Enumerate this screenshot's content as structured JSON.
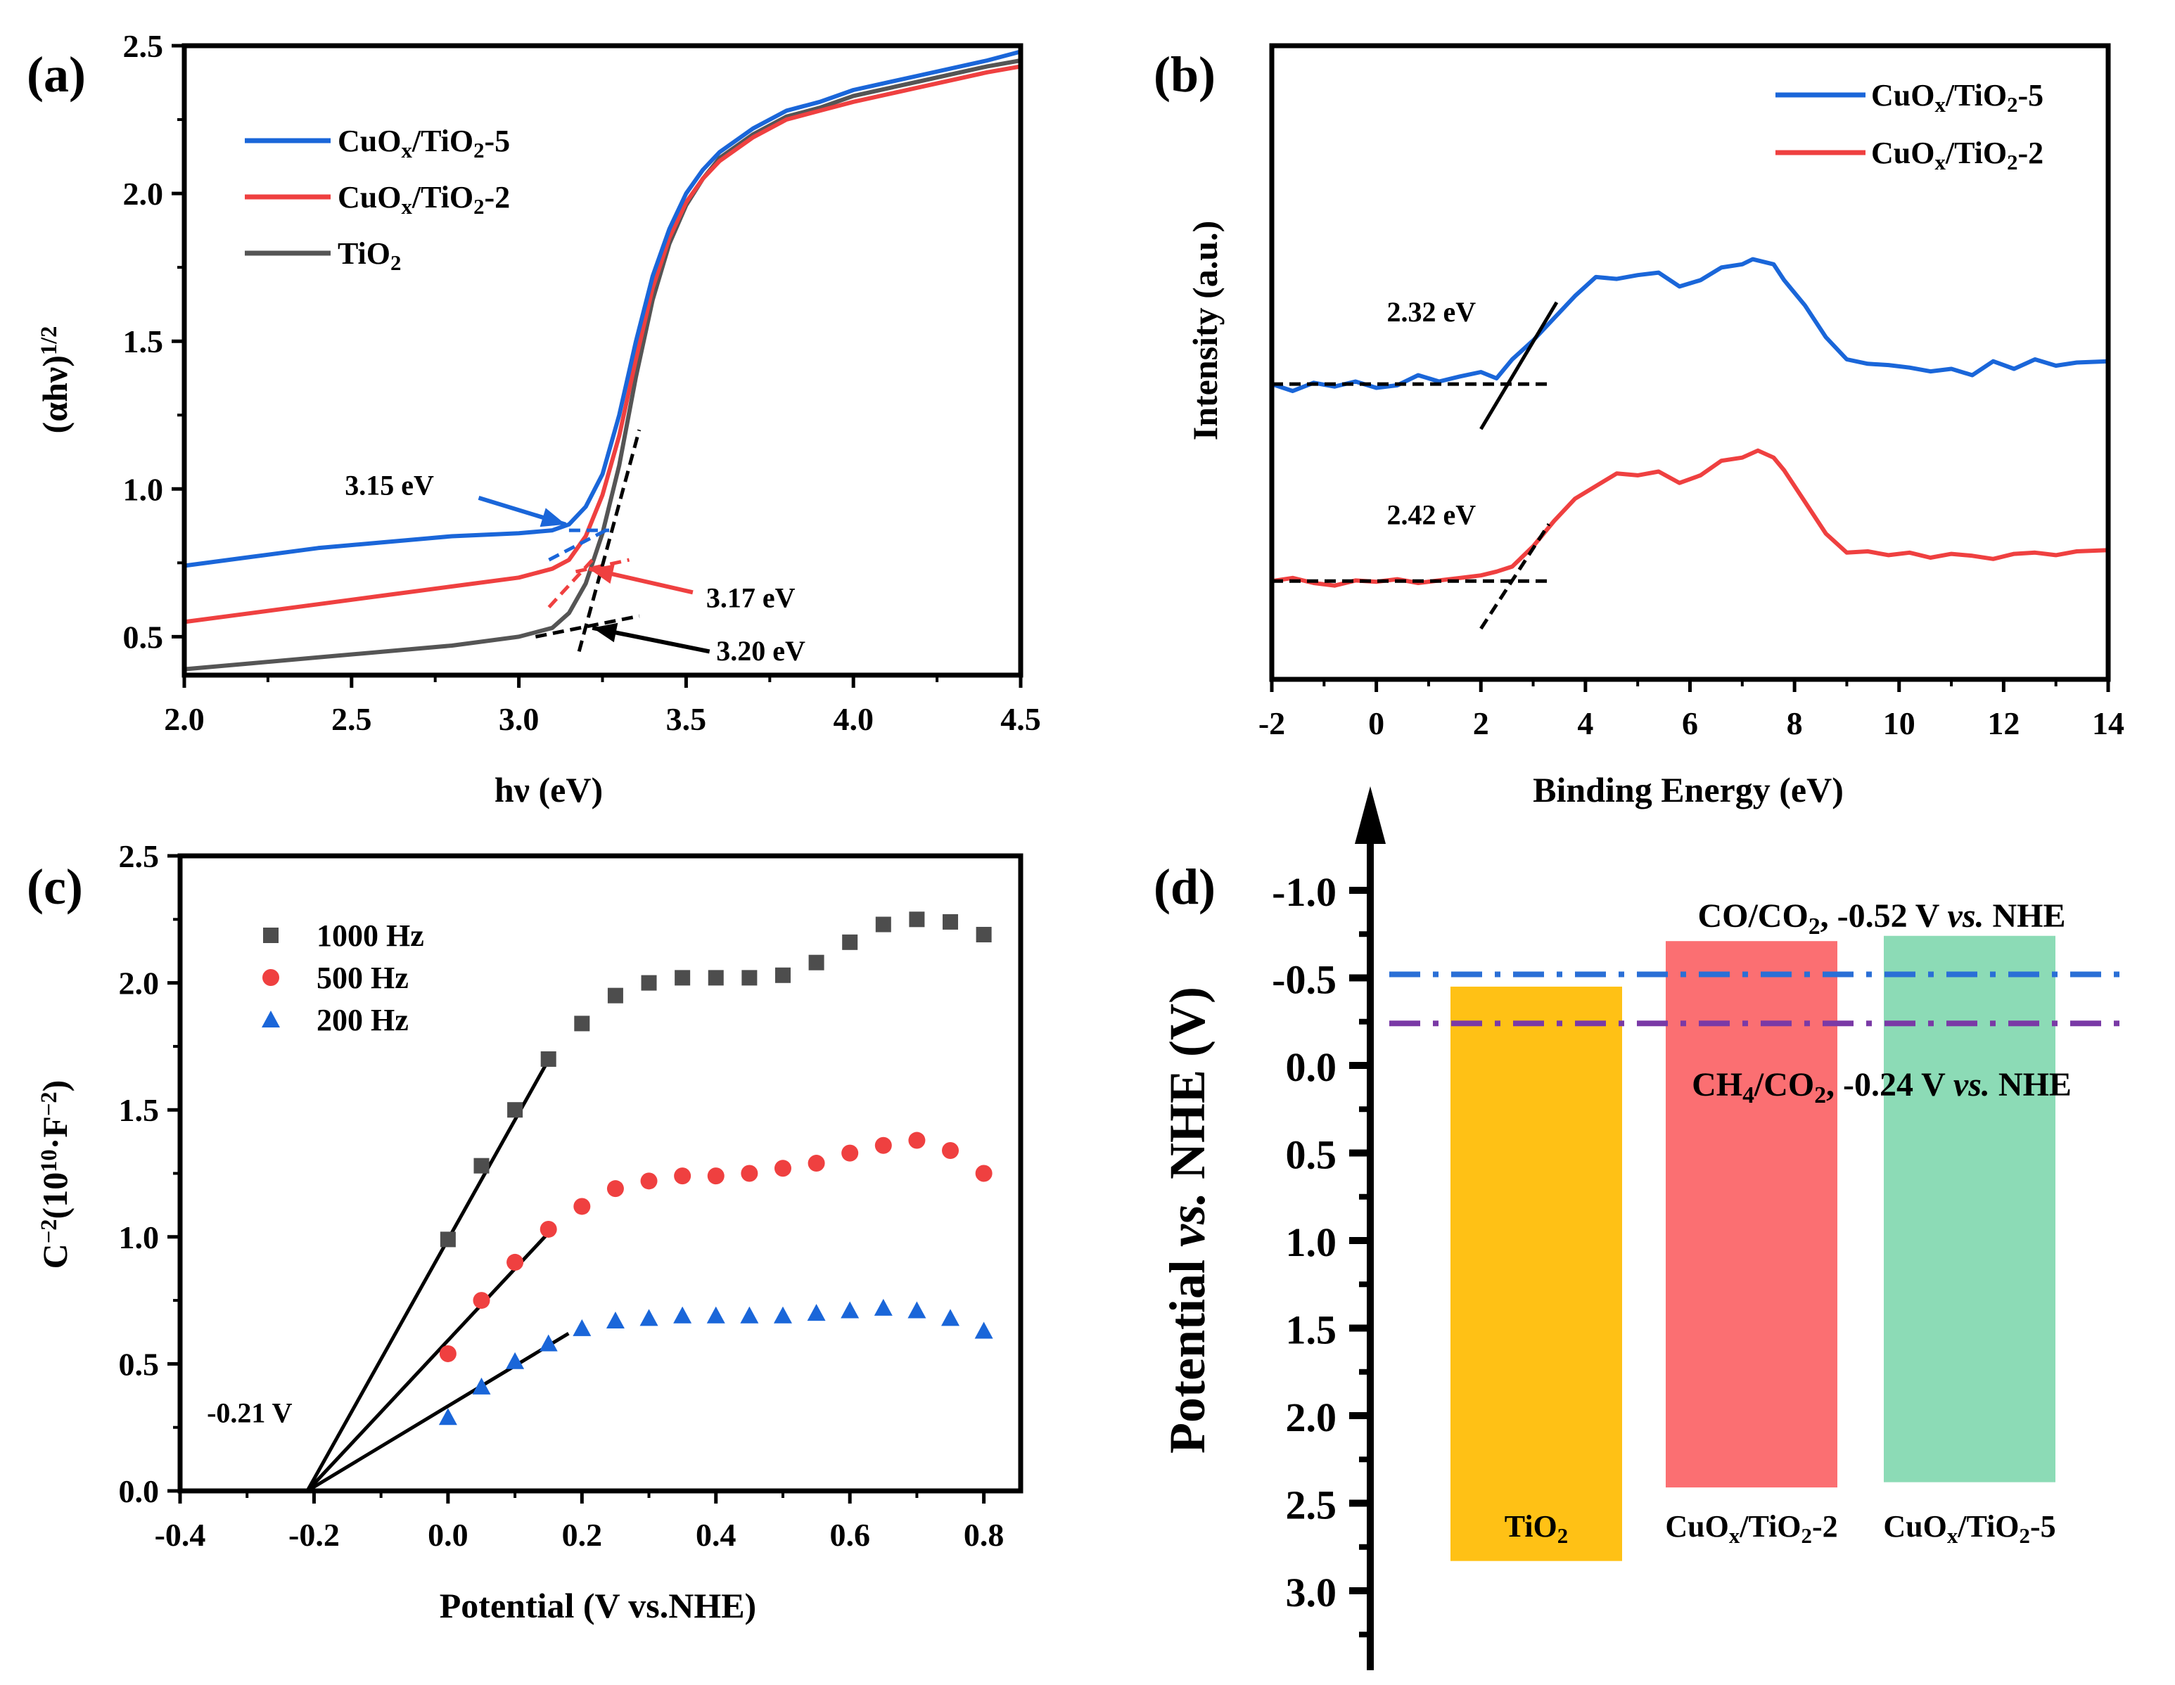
{
  "figure": {
    "panels": [
      "(a)",
      "(b)",
      "(c)",
      "(d)"
    ]
  },
  "chart_data": [
    {
      "id": "a",
      "panel_label": "(a)",
      "type": "line",
      "title": "",
      "xlabel": "hν (eV)",
      "ylabel_main": "(αhν)",
      "ylabel_sup": "1/2",
      "xlim": [
        2.0,
        4.5
      ],
      "ylim": [
        0.37,
        2.5
      ],
      "xticks": [
        2.0,
        2.5,
        3.0,
        3.5,
        4.0,
        4.5
      ],
      "xtick_labels": [
        "2.0",
        "2.5",
        "3.0",
        "3.5",
        "4.0",
        "4.5"
      ],
      "yticks": [
        0.5,
        1.0,
        1.5,
        2.0,
        2.5
      ],
      "ytick_labels": [
        "0.5",
        "1.0",
        "1.5",
        "2.0",
        "2.5"
      ],
      "grid": false,
      "legend_position": "top-left",
      "series": [
        {
          "name": "CuOx/TiO2-5",
          "legend_parts": [
            [
              "CuO",
              ""
            ],
            [
              "x",
              "sub"
            ],
            [
              "/TiO",
              ""
            ],
            [
              "2",
              "sub"
            ],
            [
              "-5",
              ""
            ]
          ],
          "color": "#1a66d9",
          "x": [
            2.0,
            2.2,
            2.4,
            2.6,
            2.8,
            3.0,
            3.1,
            3.15,
            3.2,
            3.25,
            3.3,
            3.35,
            3.4,
            3.45,
            3.5,
            3.55,
            3.6,
            3.7,
            3.8,
            3.9,
            4.0,
            4.2,
            4.4,
            4.5
          ],
          "y": [
            0.74,
            0.77,
            0.8,
            0.82,
            0.84,
            0.85,
            0.86,
            0.88,
            0.94,
            1.05,
            1.25,
            1.5,
            1.72,
            1.88,
            2.0,
            2.08,
            2.14,
            2.22,
            2.28,
            2.31,
            2.35,
            2.4,
            2.45,
            2.48
          ]
        },
        {
          "name": "CuOx/TiO2-2",
          "legend_parts": [
            [
              "CuO",
              ""
            ],
            [
              "x",
              "sub"
            ],
            [
              "/TiO",
              ""
            ],
            [
              "2",
              "sub"
            ],
            [
              "-2",
              ""
            ]
          ],
          "color": "#ef4040",
          "x": [
            2.0,
            2.2,
            2.4,
            2.6,
            2.8,
            3.0,
            3.1,
            3.15,
            3.2,
            3.25,
            3.3,
            3.35,
            3.4,
            3.45,
            3.5,
            3.55,
            3.6,
            3.7,
            3.8,
            3.9,
            4.0,
            4.2,
            4.4,
            4.5
          ],
          "y": [
            0.55,
            0.58,
            0.61,
            0.64,
            0.67,
            0.7,
            0.73,
            0.76,
            0.84,
            0.98,
            1.18,
            1.44,
            1.68,
            1.85,
            1.97,
            2.05,
            2.11,
            2.19,
            2.25,
            2.28,
            2.31,
            2.36,
            2.41,
            2.43
          ]
        },
        {
          "name": "TiO2",
          "legend_parts": [
            [
              "TiO",
              ""
            ],
            [
              "2",
              "sub"
            ]
          ],
          "color": "#555555",
          "x": [
            2.0,
            2.2,
            2.4,
            2.6,
            2.8,
            3.0,
            3.1,
            3.15,
            3.2,
            3.25,
            3.3,
            3.35,
            3.4,
            3.45,
            3.5,
            3.55,
            3.6,
            3.7,
            3.8,
            3.9,
            4.0,
            4.2,
            4.4,
            4.5
          ],
          "y": [
            0.39,
            0.41,
            0.43,
            0.45,
            0.47,
            0.5,
            0.53,
            0.58,
            0.68,
            0.85,
            1.08,
            1.38,
            1.64,
            1.83,
            1.96,
            2.05,
            2.12,
            2.2,
            2.26,
            2.29,
            2.33,
            2.38,
            2.43,
            2.45
          ]
        }
      ],
      "fit_lines": [
        {
          "color": "#1a66d9",
          "x": [
            3.09,
            3.26
          ],
          "y": [
            0.76,
            0.86
          ],
          "style": "dashed"
        },
        {
          "color": "#1a66d9",
          "x": [
            3.15,
            3.27
          ],
          "y": [
            0.86,
            0.86
          ],
          "style": "dashed"
        },
        {
          "color": "#ef4040",
          "x": [
            3.09,
            3.22
          ],
          "y": [
            0.6,
            0.76
          ],
          "style": "dashed"
        },
        {
          "color": "#ef4040",
          "x": [
            3.17,
            3.33
          ],
          "y": [
            0.72,
            0.76
          ],
          "style": "dashed"
        },
        {
          "color": "#000000",
          "x": [
            3.18,
            3.36
          ],
          "y": [
            0.45,
            1.2
          ],
          "style": "dashed"
        },
        {
          "color": "#000000",
          "x": [
            3.05,
            3.36
          ],
          "y": [
            0.5,
            0.57
          ],
          "style": "dashed"
        }
      ],
      "annotations": [
        {
          "text": "3.15 eV",
          "x": 2.48,
          "y": 0.98,
          "arrow_from": [
            2.88,
            0.97
          ],
          "arrow_to": [
            3.14,
            0.88
          ],
          "color": "#1a66d9"
        },
        {
          "text": "3.17 eV",
          "x": 3.56,
          "y": 0.6,
          "arrow_from": [
            3.52,
            0.65
          ],
          "arrow_to": [
            3.21,
            0.73
          ],
          "color": "#ef4040"
        },
        {
          "text": "3.20 eV",
          "x": 3.59,
          "y": 0.42,
          "arrow_from": [
            3.57,
            0.45
          ],
          "arrow_to": [
            3.22,
            0.53
          ],
          "color": "#000000"
        }
      ]
    },
    {
      "id": "b",
      "panel_label": "(b)",
      "type": "line",
      "title": "",
      "xlabel": "Binding Energy (eV)",
      "ylabel": "Intensity (a.u.)",
      "xlim": [
        -2,
        14
      ],
      "ylim": [
        0,
        10
      ],
      "xticks": [
        -2,
        0,
        2,
        4,
        6,
        8,
        10,
        12,
        14
      ],
      "xtick_labels": [
        "-2",
        "0",
        "2",
        "4",
        "6",
        "8",
        "10",
        "12",
        "14"
      ],
      "yticks": [],
      "grid": false,
      "legend_position": "top-right",
      "series": [
        {
          "name": "CuOx/TiO2-5",
          "legend_parts": [
            [
              "CuO",
              ""
            ],
            [
              "x",
              "sub"
            ],
            [
              "/TiO",
              ""
            ],
            [
              "2",
              "sub"
            ],
            [
              "-5",
              ""
            ]
          ],
          "color": "#1a66d9",
          "x": [
            -2.0,
            -1.6,
            -1.2,
            -0.8,
            -0.4,
            0.0,
            0.4,
            0.8,
            1.2,
            1.6,
            2.0,
            2.3,
            2.6,
            3.0,
            3.4,
            3.8,
            4.2,
            4.6,
            5.0,
            5.4,
            5.8,
            6.2,
            6.6,
            7.0,
            7.2,
            7.6,
            7.8,
            8.2,
            8.6,
            9.0,
            9.4,
            9.8,
            10.2,
            10.6,
            11.0,
            11.4,
            11.8,
            12.2,
            12.6,
            13.0,
            13.4,
            14.0
          ],
          "y": [
            4.66,
            4.55,
            4.68,
            4.62,
            4.7,
            4.6,
            4.64,
            4.8,
            4.7,
            4.78,
            4.85,
            4.75,
            5.05,
            5.35,
            5.7,
            6.05,
            6.35,
            6.32,
            6.38,
            6.42,
            6.2,
            6.3,
            6.5,
            6.55,
            6.63,
            6.55,
            6.3,
            5.9,
            5.4,
            5.05,
            4.98,
            4.96,
            4.92,
            4.86,
            4.9,
            4.8,
            5.02,
            4.9,
            5.05,
            4.95,
            5.0,
            5.02
          ]
        },
        {
          "name": "CuOx/TiO2-2",
          "legend_parts": [
            [
              "CuO",
              ""
            ],
            [
              "x",
              "sub"
            ],
            [
              "/TiO",
              ""
            ],
            [
              "2",
              "sub"
            ],
            [
              "-2",
              ""
            ]
          ],
          "color": "#ef4040",
          "x": [
            -2.0,
            -1.6,
            -1.2,
            -0.8,
            -0.4,
            0.0,
            0.4,
            0.8,
            1.2,
            1.6,
            2.0,
            2.3,
            2.6,
            3.0,
            3.4,
            3.8,
            4.2,
            4.6,
            5.0,
            5.4,
            5.8,
            6.2,
            6.6,
            7.0,
            7.3,
            7.6,
            7.8,
            8.2,
            8.6,
            9.0,
            9.4,
            9.8,
            10.2,
            10.6,
            11.0,
            11.4,
            11.8,
            12.2,
            12.6,
            13.0,
            13.4,
            14.0
          ],
          "y": [
            1.55,
            1.6,
            1.52,
            1.48,
            1.56,
            1.54,
            1.58,
            1.52,
            1.56,
            1.6,
            1.64,
            1.7,
            1.78,
            2.1,
            2.5,
            2.85,
            3.05,
            3.25,
            3.22,
            3.28,
            3.1,
            3.22,
            3.45,
            3.5,
            3.61,
            3.5,
            3.3,
            2.8,
            2.3,
            2.0,
            2.02,
            1.96,
            2.0,
            1.92,
            1.98,
            1.95,
            1.9,
            1.98,
            2.0,
            1.96,
            2.02,
            2.04
          ]
        }
      ],
      "fit_lines": [
        {
          "color": "#000000",
          "x": [
            -2.0,
            3.3
          ],
          "y": [
            4.66,
            4.66
          ],
          "style": "dashed"
        },
        {
          "color": "#000000",
          "x": [
            2.0,
            3.45
          ],
          "y": [
            3.95,
            5.95
          ],
          "style": "solid"
        },
        {
          "color": "#000000",
          "x": [
            -2.0,
            3.3
          ],
          "y": [
            1.55,
            1.55
          ],
          "style": "dashed"
        },
        {
          "color": "#000000",
          "x": [
            2.0,
            3.3
          ],
          "y": [
            0.8,
            2.45
          ],
          "style": "dashed"
        }
      ],
      "annotations": [
        {
          "text": "2.32 eV",
          "x": 0.2,
          "y": 5.65
        },
        {
          "text": "2.42 eV",
          "x": 0.2,
          "y": 2.45
        }
      ]
    },
    {
      "id": "c",
      "panel_label": "(c)",
      "type": "scatter",
      "title": "",
      "xlabel": "Potential (V vs.NHE)",
      "ylabel_parts": [
        [
          "C",
          ""
        ],
        [
          "−2",
          "sup"
        ],
        [
          "(10",
          ""
        ],
        [
          "10",
          "sup"
        ],
        [
          "·F",
          ""
        ],
        [
          "−2",
          "sup"
        ],
        [
          ")",
          ""
        ]
      ],
      "xlim": [
        -0.4,
        0.855
      ],
      "ylim": [
        0.0,
        2.5
      ],
      "xticks": [
        -0.4,
        -0.2,
        0.0,
        0.2,
        0.4,
        0.6,
        0.8
      ],
      "xtick_labels": [
        "-0.4",
        "-0.2",
        "0.0",
        "0.2",
        "0.4",
        "0.6",
        "0.8"
      ],
      "yticks": [
        0.0,
        0.5,
        1.0,
        1.5,
        2.0,
        2.5
      ],
      "ytick_labels": [
        "0.0",
        "0.5",
        "1.0",
        "1.5",
        "2.0",
        "2.5"
      ],
      "grid": false,
      "legend_position": "top-left",
      "x": [
        0.0,
        0.05,
        0.1,
        0.15,
        0.2,
        0.25,
        0.3,
        0.35,
        0.4,
        0.45,
        0.5,
        0.55,
        0.6,
        0.65,
        0.7,
        0.75,
        0.8
      ],
      "series": [
        {
          "name": "1000 Hz",
          "marker": "square",
          "color": "#4d4d4d",
          "values": [
            0.99,
            1.28,
            1.5,
            1.7,
            1.84,
            1.95,
            2.0,
            2.02,
            2.02,
            2.02,
            2.03,
            2.08,
            2.16,
            2.23,
            2.25,
            2.24,
            2.19
          ]
        },
        {
          "name": "500 Hz",
          "marker": "circle",
          "color": "#ef4040",
          "values": [
            0.54,
            0.75,
            0.9,
            1.03,
            1.12,
            1.19,
            1.22,
            1.24,
            1.24,
            1.25,
            1.27,
            1.29,
            1.33,
            1.36,
            1.38,
            1.34,
            1.25
          ]
        },
        {
          "name": "200 Hz",
          "marker": "triangle",
          "color": "#1a66d9",
          "values": [
            0.29,
            0.41,
            0.51,
            0.58,
            0.64,
            0.67,
            0.68,
            0.69,
            0.69,
            0.69,
            0.69,
            0.7,
            0.71,
            0.72,
            0.71,
            0.68,
            0.63
          ]
        }
      ],
      "fit_lines": [
        {
          "x": [
            -0.21,
            0.155
          ],
          "y": [
            0.0,
            1.72
          ]
        },
        {
          "x": [
            -0.21,
            0.155
          ],
          "y": [
            0.0,
            1.03
          ]
        },
        {
          "x": [
            -0.21,
            0.18
          ],
          "y": [
            0.0,
            0.62
          ]
        }
      ],
      "annotations": [
        {
          "text": "-0.21 V",
          "x": -0.36,
          "y": 0.27
        }
      ]
    },
    {
      "id": "d",
      "panel_label": "(d)",
      "type": "bar",
      "title": "",
      "ylabel_parts": [
        [
          "Potential ",
          ""
        ],
        [
          "vs.",
          "italic"
        ],
        [
          " NHE (V)",
          ""
        ]
      ],
      "ylim": [
        3.4,
        -1.45
      ],
      "yticks": [
        -1.0,
        -0.5,
        0.0,
        0.5,
        1.0,
        1.5,
        2.0,
        2.5,
        3.0
      ],
      "ytick_labels": [
        "-1.0",
        "-0.5",
        "0.0",
        "0.5",
        "1.0",
        "1.5",
        "2.0",
        "2.5",
        "3.0"
      ],
      "grid": false,
      "categories": [
        "TiO2",
        "CuOx/TiO2-2",
        "CuOx/TiO2-5"
      ],
      "bars": [
        {
          "name": "TiO2",
          "label_parts": [
            [
              "TiO",
              ""
            ],
            [
              "2",
              "sub"
            ]
          ],
          "cb": -0.45,
          "vb": 2.83,
          "color": "#ffc115"
        },
        {
          "name": "CuOx/TiO2-2",
          "label_parts": [
            [
              "CuO",
              ""
            ],
            [
              "x",
              "sub"
            ],
            [
              "/TiO",
              ""
            ],
            [
              "2",
              "sub"
            ],
            [
              "-2",
              ""
            ]
          ],
          "cb": -0.71,
          "vb": 2.41,
          "color": "#fb6f72"
        },
        {
          "name": "CuOx/TiO2-5",
          "label_parts": [
            [
              "CuO",
              ""
            ],
            [
              "x",
              "sub"
            ],
            [
              "/TiO",
              ""
            ],
            [
              "2",
              "sub"
            ],
            [
              "-5",
              ""
            ]
          ],
          "cb": -0.74,
          "vb": 2.38,
          "color": "#8cdbb6"
        }
      ],
      "reference_lines": [
        {
          "name": "CO/CO2",
          "value": -0.52,
          "color": "#2a6fd6",
          "label_parts": [
            [
              "CO/CO",
              ""
            ],
            [
              "2",
              "sub"
            ],
            [
              ", -0.52 V ",
              ""
            ],
            [
              "vs.",
              "italic"
            ],
            [
              " NHE",
              ""
            ]
          ]
        },
        {
          "name": "CH4/CO2",
          "value": -0.24,
          "color": "#7a3aa6",
          "label_parts": [
            [
              "CH",
              ""
            ],
            [
              "4",
              "sub"
            ],
            [
              "/CO",
              ""
            ],
            [
              "2",
              "sub"
            ],
            [
              ", -0.24 V ",
              ""
            ],
            [
              "vs.",
              "italic"
            ],
            [
              " NHE",
              ""
            ]
          ]
        }
      ]
    }
  ]
}
